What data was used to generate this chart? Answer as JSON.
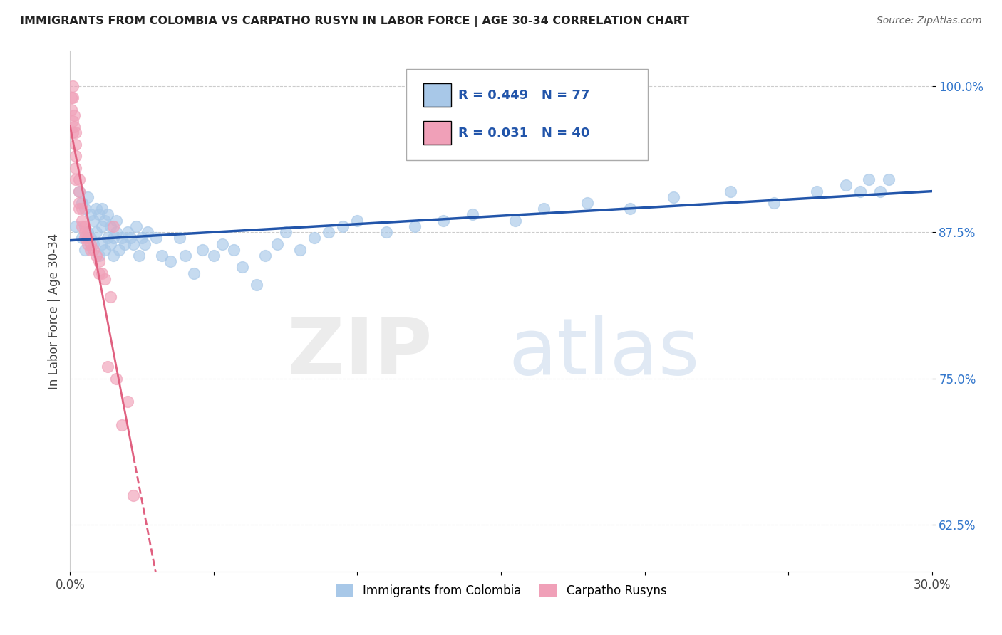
{
  "title": "IMMIGRANTS FROM COLOMBIA VS CARPATHO RUSYN IN LABOR FORCE | AGE 30-34 CORRELATION CHART",
  "source": "Source: ZipAtlas.com",
  "ylabel": "In Labor Force | Age 30-34",
  "xlim": [
    0.0,
    0.3
  ],
  "ylim": [
    0.585,
    1.03
  ],
  "yticks": [
    0.625,
    0.75,
    0.875,
    1.0
  ],
  "ytick_labels": [
    "62.5%",
    "75.0%",
    "87.5%",
    "100.0%"
  ],
  "xticks": [
    0.0,
    0.05,
    0.1,
    0.15,
    0.2,
    0.25,
    0.3
  ],
  "xtick_labels": [
    "0.0%",
    "",
    "",
    "",
    "",
    "",
    "30.0%"
  ],
  "colombia_R": 0.449,
  "colombia_N": 77,
  "rusyn_R": 0.031,
  "rusyn_N": 40,
  "legend_entries": [
    "Immigrants from Colombia",
    "Carpatho Rusyns"
  ],
  "colombia_color": "#a8c8e8",
  "rusyn_color": "#f0a0b8",
  "trendline_colombia_color": "#2255aa",
  "trendline_rusyn_color": "#e06080",
  "background_color": "#ffffff",
  "colombia_x": [
    0.002,
    0.003,
    0.004,
    0.004,
    0.005,
    0.005,
    0.006,
    0.006,
    0.007,
    0.007,
    0.008,
    0.008,
    0.009,
    0.009,
    0.01,
    0.01,
    0.011,
    0.011,
    0.011,
    0.012,
    0.012,
    0.013,
    0.013,
    0.014,
    0.014,
    0.015,
    0.015,
    0.016,
    0.016,
    0.017,
    0.018,
    0.019,
    0.02,
    0.021,
    0.022,
    0.023,
    0.024,
    0.025,
    0.026,
    0.027,
    0.03,
    0.032,
    0.035,
    0.038,
    0.04,
    0.043,
    0.046,
    0.05,
    0.053,
    0.057,
    0.06,
    0.065,
    0.068,
    0.072,
    0.075,
    0.08,
    0.085,
    0.09,
    0.095,
    0.1,
    0.11,
    0.12,
    0.13,
    0.14,
    0.155,
    0.165,
    0.18,
    0.195,
    0.21,
    0.23,
    0.245,
    0.26,
    0.27,
    0.275,
    0.278,
    0.282,
    0.285
  ],
  "colombia_y": [
    0.88,
    0.91,
    0.87,
    0.9,
    0.86,
    0.895,
    0.875,
    0.905,
    0.87,
    0.89,
    0.865,
    0.885,
    0.895,
    0.875,
    0.855,
    0.89,
    0.865,
    0.88,
    0.895,
    0.86,
    0.885,
    0.87,
    0.89,
    0.865,
    0.88,
    0.855,
    0.87,
    0.875,
    0.885,
    0.86,
    0.87,
    0.865,
    0.875,
    0.87,
    0.865,
    0.88,
    0.855,
    0.87,
    0.865,
    0.875,
    0.87,
    0.855,
    0.85,
    0.87,
    0.855,
    0.84,
    0.86,
    0.855,
    0.865,
    0.86,
    0.845,
    0.83,
    0.855,
    0.865,
    0.875,
    0.86,
    0.87,
    0.875,
    0.88,
    0.885,
    0.875,
    0.88,
    0.885,
    0.89,
    0.885,
    0.895,
    0.9,
    0.895,
    0.905,
    0.91,
    0.9,
    0.91,
    0.915,
    0.91,
    0.92,
    0.91,
    0.92
  ],
  "rusyn_x": [
    0.0005,
    0.0005,
    0.001,
    0.001,
    0.001,
    0.001,
    0.0015,
    0.0015,
    0.002,
    0.002,
    0.002,
    0.002,
    0.002,
    0.003,
    0.003,
    0.003,
    0.003,
    0.004,
    0.004,
    0.004,
    0.005,
    0.005,
    0.005,
    0.006,
    0.006,
    0.007,
    0.007,
    0.008,
    0.009,
    0.01,
    0.01,
    0.011,
    0.012,
    0.013,
    0.014,
    0.015,
    0.016,
    0.018,
    0.02,
    0.022
  ],
  "rusyn_y": [
    0.99,
    0.98,
    1.0,
    0.99,
    0.97,
    0.96,
    0.975,
    0.965,
    0.96,
    0.95,
    0.94,
    0.93,
    0.92,
    0.92,
    0.91,
    0.9,
    0.895,
    0.895,
    0.885,
    0.88,
    0.88,
    0.875,
    0.87,
    0.87,
    0.865,
    0.865,
    0.86,
    0.86,
    0.855,
    0.85,
    0.84,
    0.84,
    0.835,
    0.76,
    0.82,
    0.88,
    0.75,
    0.71,
    0.73,
    0.65
  ]
}
